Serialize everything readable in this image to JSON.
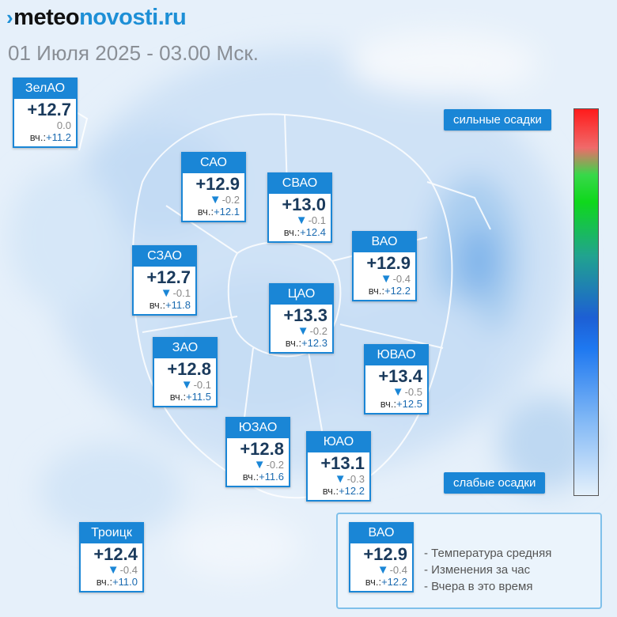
{
  "brand": {
    "part1": "meteo",
    "part2": "novosti.ru",
    "mark_icon": "double-chevron-icon"
  },
  "datetime": "01 Июля 2025 - 03.00 Мск.",
  "yesterday_prefix": "вч.:",
  "colors": {
    "accent": "#1a86d6",
    "logo_blue": "#1d8fd6"
  },
  "districts": [
    {
      "name": "ЗелАО",
      "temp": "+12.7",
      "change": "0.0",
      "change_arrow": "",
      "yesterday": "+11.2"
    },
    {
      "name": "САО",
      "temp": "+12.9",
      "change": "-0.2",
      "change_arrow": "▼",
      "yesterday": "+12.1"
    },
    {
      "name": "СВАО",
      "temp": "+13.0",
      "change": "-0.1",
      "change_arrow": "▼",
      "yesterday": "+12.4"
    },
    {
      "name": "ВАО",
      "temp": "+12.9",
      "change": "-0.4",
      "change_arrow": "▼",
      "yesterday": "+12.2"
    },
    {
      "name": "СЗАО",
      "temp": "+12.7",
      "change": "-0.1",
      "change_arrow": "▼",
      "yesterday": "+11.8"
    },
    {
      "name": "ЦАО",
      "temp": "+13.3",
      "change": "-0.2",
      "change_arrow": "▼",
      "yesterday": "+12.3"
    },
    {
      "name": "ЗАО",
      "temp": "+12.8",
      "change": "-0.1",
      "change_arrow": "▼",
      "yesterday": "+11.5"
    },
    {
      "name": "ЮВАО",
      "temp": "+13.4",
      "change": "-0.5",
      "change_arrow": "▼",
      "yesterday": "+12.5"
    },
    {
      "name": "ЮЗАО",
      "temp": "+12.8",
      "change": "-0.2",
      "change_arrow": "▼",
      "yesterday": "+11.6"
    },
    {
      "name": "ЮАО",
      "temp": "+13.1",
      "change": "-0.3",
      "change_arrow": "▼",
      "yesterday": "+12.2"
    },
    {
      "name": "Троицк",
      "temp": "+12.4",
      "change": "-0.4",
      "change_arrow": "▼",
      "yesterday": "+11.0"
    }
  ],
  "legend": {
    "strong": "сильные осадки",
    "weak": "слабые осадки",
    "example": {
      "name": "ВАО",
      "temp": "+12.9",
      "change": "-0.4",
      "change_arrow": "▼",
      "yesterday": "+12.2"
    },
    "lines": [
      "- Температура средняя",
      "- Изменения за час",
      "- Вчера в это время"
    ]
  }
}
